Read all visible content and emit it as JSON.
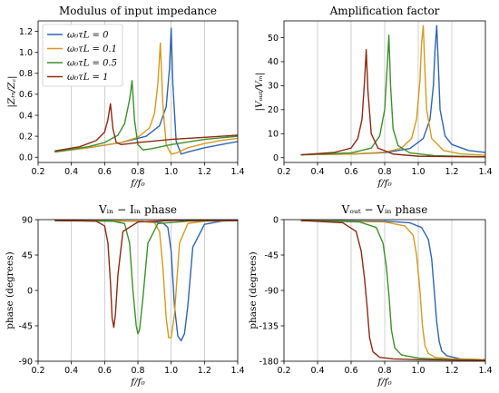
{
  "chart_data": [
    {
      "type": "line",
      "title": "Modulus of input impedance",
      "xlabel": "f/f₀",
      "ylabel": "|Zᵢₙ/Z꜀|",
      "xlim": [
        0.2,
        1.4
      ],
      "ylim": [
        -0.05,
        1.3
      ],
      "xticks": [
        0.2,
        0.4,
        0.6,
        0.8,
        1.0,
        1.2,
        1.4
      ],
      "xtick_labels": [
        "0.2",
        "0.4",
        "0.6",
        "0.8",
        "1.0",
        "1.2",
        "1.4"
      ],
      "yticks": [
        0.0,
        0.2,
        0.4,
        0.6,
        0.8,
        1.0,
        1.2
      ],
      "ytick_labels": [
        "0.0",
        "0.2",
        "0.4",
        "0.6",
        "0.8",
        "1.0",
        "1.2"
      ],
      "grid": "x-only",
      "legend": "top-left",
      "series": [
        {
          "name": "ω₀τL = 0",
          "color": "#2f64b0",
          "x": [
            0.3,
            0.5,
            0.7,
            0.85,
            0.93,
            0.97,
            0.99,
            1.0,
            1.01,
            1.03,
            1.06,
            1.1,
            1.2,
            1.3,
            1.4
          ],
          "y": [
            0.05,
            0.09,
            0.14,
            0.2,
            0.3,
            0.48,
            0.85,
            1.23,
            0.7,
            0.15,
            0.03,
            0.05,
            0.09,
            0.12,
            0.15
          ]
        },
        {
          "name": "ω₀τL = 0.1",
          "color": "#d39a1f",
          "x": [
            0.3,
            0.5,
            0.7,
            0.8,
            0.87,
            0.9,
            0.92,
            0.935,
            0.95,
            0.97,
            1.0,
            1.03,
            1.1,
            1.2,
            1.3,
            1.4
          ],
          "y": [
            0.05,
            0.09,
            0.14,
            0.19,
            0.28,
            0.42,
            0.7,
            1.09,
            0.5,
            0.12,
            0.03,
            0.04,
            0.09,
            0.13,
            0.16,
            0.18
          ]
        },
        {
          "name": "ω₀τL = 0.5",
          "color": "#3d8f2c",
          "x": [
            0.3,
            0.5,
            0.6,
            0.68,
            0.72,
            0.75,
            0.765,
            0.78,
            0.8,
            0.83,
            0.88,
            1.0,
            1.2,
            1.4
          ],
          "y": [
            0.05,
            0.1,
            0.14,
            0.21,
            0.32,
            0.55,
            0.73,
            0.35,
            0.12,
            0.07,
            0.08,
            0.12,
            0.17,
            0.2
          ]
        },
        {
          "name": "ω₀τL = 1",
          "color": "#8b2a14",
          "x": [
            0.3,
            0.45,
            0.55,
            0.6,
            0.62,
            0.635,
            0.65,
            0.67,
            0.7,
            0.8,
            1.0,
            1.2,
            1.4
          ],
          "y": [
            0.06,
            0.1,
            0.16,
            0.24,
            0.36,
            0.51,
            0.27,
            0.14,
            0.12,
            0.14,
            0.17,
            0.19,
            0.21
          ]
        }
      ]
    },
    {
      "type": "line",
      "title": "Amplification factor",
      "xlabel": "f/f₀",
      "ylabel": "|Vₒᵤₜ/Vᵢₙ|",
      "xlim": [
        0.2,
        1.4
      ],
      "ylim": [
        -2,
        57
      ],
      "xticks": [
        0.2,
        0.4,
        0.6,
        0.8,
        1.0,
        1.2,
        1.4
      ],
      "xtick_labels": [
        "0.2",
        "0.4",
        "0.6",
        "0.8",
        "1.0",
        "1.2",
        "1.4"
      ],
      "yticks": [
        0,
        10,
        20,
        30,
        40,
        50
      ],
      "ytick_labels": [
        "0",
        "10",
        "20",
        "30",
        "40",
        "50"
      ],
      "grid": "x-only",
      "series": [
        {
          "color": "#2f64b0",
          "x": [
            0.3,
            0.6,
            0.8,
            0.95,
            1.03,
            1.07,
            1.09,
            1.1,
            1.11,
            1.12,
            1.13,
            1.16,
            1.2,
            1.3,
            1.4
          ],
          "y": [
            1.2,
            1.5,
            2.1,
            3.8,
            8,
            16,
            30,
            45,
            55,
            38,
            20,
            9,
            5.5,
            3,
            2.2
          ]
        },
        {
          "color": "#d39a1f",
          "x": [
            0.3,
            0.6,
            0.8,
            0.9,
            0.96,
            0.99,
            1.01,
            1.02,
            1.03,
            1.04,
            1.05,
            1.08,
            1.15,
            1.25,
            1.4
          ],
          "y": [
            1.2,
            1.5,
            2.3,
            4,
            8,
            16,
            32,
            48,
            55,
            36,
            20,
            8,
            3,
            1.6,
            1
          ]
        },
        {
          "color": "#3d8f2c",
          "x": [
            0.3,
            0.6,
            0.72,
            0.77,
            0.8,
            0.815,
            0.825,
            0.835,
            0.85,
            0.88,
            0.95,
            1.1,
            1.4
          ],
          "y": [
            1.2,
            2,
            4,
            9,
            20,
            38,
            51,
            30,
            12,
            5,
            2,
            0.8,
            0.4
          ]
        },
        {
          "color": "#8b2a14",
          "x": [
            0.3,
            0.5,
            0.6,
            0.64,
            0.665,
            0.68,
            0.69,
            0.7,
            0.72,
            0.76,
            0.85,
            1.0,
            1.4
          ],
          "y": [
            1.2,
            2.2,
            4,
            8,
            16,
            32,
            45,
            28,
            10,
            4,
            1.5,
            0.6,
            0.3
          ]
        }
      ]
    },
    {
      "type": "line",
      "title": "Vᵢₙ − Iᵢₙ phase",
      "xlabel": "f/f₀",
      "ylabel": "phase (degrees)",
      "xlim": [
        0.2,
        1.4
      ],
      "ylim": [
        -90,
        90
      ],
      "xticks": [
        0.2,
        0.4,
        0.6,
        0.8,
        1.0,
        1.2,
        1.4
      ],
      "xtick_labels": [
        "0.2",
        "0.4",
        "0.6",
        "0.8",
        "1.0",
        "1.2",
        "1.4"
      ],
      "yticks": [
        -90,
        -45,
        0,
        45,
        90
      ],
      "ytick_labels": [
        "-90",
        "-45",
        "0",
        "45",
        "90"
      ],
      "grid": "x-only",
      "series": [
        {
          "color": "#2f64b0",
          "x": [
            0.3,
            0.8,
            0.95,
            0.98,
            1.0,
            1.02,
            1.04,
            1.06,
            1.08,
            1.1,
            1.13,
            1.2,
            1.3,
            1.4
          ],
          "y": [
            89,
            88,
            86,
            80,
            50,
            -20,
            -58,
            -64,
            -55,
            -20,
            55,
            84,
            88,
            89
          ]
        },
        {
          "color": "#d39a1f",
          "x": [
            0.3,
            0.8,
            0.9,
            0.93,
            0.95,
            0.97,
            0.985,
            1.0,
            1.02,
            1.05,
            1.1,
            1.2,
            1.4
          ],
          "y": [
            89,
            88,
            86,
            75,
            30,
            -35,
            -60,
            -60,
            -30,
            60,
            85,
            88,
            89
          ]
        },
        {
          "color": "#3d8f2c",
          "x": [
            0.3,
            0.65,
            0.72,
            0.75,
            0.77,
            0.79,
            0.8,
            0.81,
            0.83,
            0.86,
            0.92,
            1.1,
            1.4
          ],
          "y": [
            89,
            88,
            85,
            60,
            0,
            -45,
            -55,
            -50,
            -10,
            60,
            85,
            88,
            89
          ]
        },
        {
          "color": "#8b2a14",
          "x": [
            0.3,
            0.55,
            0.6,
            0.62,
            0.635,
            0.645,
            0.655,
            0.665,
            0.68,
            0.71,
            0.8,
            1.0,
            1.4
          ],
          "y": [
            89,
            88,
            82,
            60,
            10,
            -35,
            -47,
            -30,
            20,
            75,
            87,
            89,
            89
          ]
        }
      ]
    },
    {
      "type": "line",
      "title": "Vₒᵤₜ − Vᵢₙ phase",
      "xlabel": "f/f₀",
      "ylabel": "phase (degrees)",
      "xlim": [
        0.2,
        1.4
      ],
      "ylim": [
        -180,
        0
      ],
      "xticks": [
        0.2,
        0.4,
        0.6,
        0.8,
        1.0,
        1.2,
        1.4
      ],
      "xtick_labels": [
        "0.2",
        "0.4",
        "0.6",
        "0.8",
        "1.0",
        "1.2",
        "1.4"
      ],
      "yticks": [
        -180,
        -135,
        -90,
        -45,
        0
      ],
      "ytick_labels": [
        "-180",
        "-135",
        "-90",
        "-45",
        "0"
      ],
      "grid": "x-only",
      "series": [
        {
          "color": "#2f64b0",
          "x": [
            0.3,
            0.8,
            0.95,
            1.02,
            1.06,
            1.08,
            1.095,
            1.11,
            1.125,
            1.14,
            1.17,
            1.25,
            1.4
          ],
          "y": [
            -1,
            -2,
            -4,
            -10,
            -25,
            -50,
            -90,
            -130,
            -155,
            -167,
            -173,
            -177,
            -178
          ]
        },
        {
          "color": "#d39a1f",
          "x": [
            0.3,
            0.8,
            0.92,
            0.97,
            0.99,
            1.01,
            1.025,
            1.04,
            1.06,
            1.1,
            1.2,
            1.4
          ],
          "y": [
            -1,
            -3,
            -8,
            -20,
            -45,
            -90,
            -135,
            -160,
            -170,
            -175,
            -177,
            -178
          ]
        },
        {
          "color": "#3d8f2c",
          "x": [
            0.3,
            0.65,
            0.75,
            0.79,
            0.81,
            0.825,
            0.84,
            0.86,
            0.9,
            1.0,
            1.2,
            1.4
          ],
          "y": [
            -1,
            -3,
            -10,
            -30,
            -60,
            -95,
            -140,
            -163,
            -172,
            -176,
            -178,
            -179
          ]
        },
        {
          "color": "#8b2a14",
          "x": [
            0.3,
            0.55,
            0.63,
            0.66,
            0.68,
            0.695,
            0.71,
            0.73,
            0.77,
            0.85,
            1.0,
            1.4
          ],
          "y": [
            -1,
            -4,
            -15,
            -40,
            -75,
            -110,
            -150,
            -168,
            -175,
            -177,
            -178,
            -179
          ]
        }
      ]
    }
  ]
}
